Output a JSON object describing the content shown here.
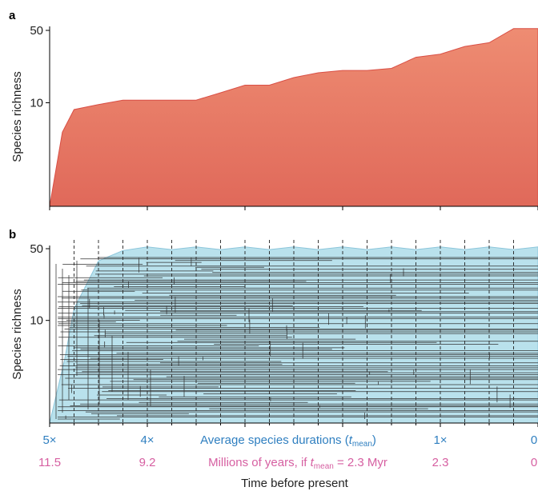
{
  "panel_labels": [
    "a",
    "b"
  ],
  "xlabel": "Time before present",
  "multiplier_axis": {
    "label": "Average species durations (",
    "label_t": "t",
    "label_sub": "mean",
    "label_close": ")",
    "ticks": [
      {
        "label": "5×",
        "x": 5
      },
      {
        "label": "4×",
        "x": 4
      },
      {
        "label": "1×",
        "x": 1
      },
      {
        "label": "0",
        "x": 0
      }
    ]
  },
  "myr_axis": {
    "label_prefix": "Millions of years,  if ",
    "label_t": "t",
    "label_sub": "mean",
    "label_suffix": " = 2.3 Myr",
    "ticks": [
      {
        "label": "11.5",
        "x": 5
      },
      {
        "label": "9.2",
        "x": 4
      },
      {
        "label": "2.3",
        "x": 1
      },
      {
        "label": "0",
        "x": 0
      }
    ]
  },
  "colors": {
    "panel_a_fill_top": "#ee8c72",
    "panel_a_fill_bottom": "#e0695a",
    "panel_a_edge": "#d94f45",
    "panel_b_fill": "#b9e1ec",
    "panel_b_edge": "#8dc6db",
    "tree": "#333333",
    "multiplier_blue": "#2f7fc0",
    "myr_pink": "#d65fa1"
  },
  "chart_data": [
    {
      "panel": "a",
      "type": "area",
      "ylabel": "Species richness",
      "yscale": "log",
      "yticks": [
        10,
        50
      ],
      "ylim": [
        1,
        50
      ],
      "xlim": [
        5,
        0
      ],
      "x": [
        5.0,
        4.87,
        4.75,
        4.5,
        4.25,
        4.0,
        3.75,
        3.5,
        3.25,
        3.0,
        2.75,
        2.5,
        2.25,
        2.0,
        1.75,
        1.5,
        1.25,
        1.0,
        0.75,
        0.5,
        0.25,
        0.0
      ],
      "y": [
        1.0,
        5.2,
        8.6,
        9.6,
        10.6,
        10.6,
        10.6,
        10.6,
        12.5,
        14.8,
        14.8,
        17.5,
        19.5,
        20.5,
        20.5,
        21.5,
        27.5,
        29.5,
        35,
        38,
        52,
        52
      ]
    },
    {
      "panel": "b",
      "type": "area",
      "ylabel": "Species richness",
      "yscale": "log",
      "yticks": [
        10,
        50
      ],
      "ylim": [
        1,
        50
      ],
      "xlim": [
        5,
        0
      ],
      "x": [
        5.0,
        4.85,
        4.75,
        4.5,
        4.25,
        4.0,
        3.75,
        3.5,
        3.25,
        3.0,
        2.75,
        2.5,
        2.25,
        2.0,
        1.75,
        1.5,
        1.25,
        1.0,
        0.75,
        0.5,
        0.25,
        0.0
      ],
      "y": [
        1.0,
        4.0,
        13.0,
        38,
        48,
        52,
        49,
        52,
        49,
        52,
        49,
        52,
        49,
        52,
        49,
        52,
        49,
        52,
        49,
        52,
        49,
        52
      ],
      "dashed_time_slices": [
        4.75,
        4.5,
        4.25,
        4.0,
        3.75,
        3.5,
        3.25,
        3.0,
        2.75,
        2.5,
        2.25,
        2.0,
        1.75,
        1.5,
        1.25,
        1.0,
        0.75,
        0.5,
        0.25
      ]
    }
  ]
}
